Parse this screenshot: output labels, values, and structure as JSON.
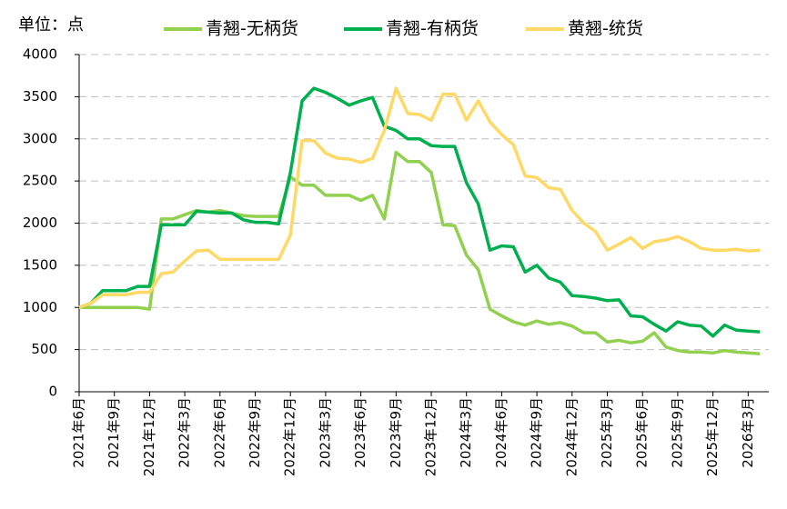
{
  "chart_data": {
    "type": "line",
    "y_label": "单位：点",
    "categories": [
      "2021年6月",
      null,
      null,
      "2021年9月",
      null,
      null,
      "2021年12月",
      null,
      null,
      "2022年3月",
      null,
      null,
      "2022年6月",
      null,
      null,
      "2022年9月",
      null,
      null,
      "2022年12月",
      null,
      null,
      "2023年3月",
      null,
      null,
      "2023年6月",
      null,
      null,
      "2023年9月",
      null,
      null,
      "2023年12月",
      null,
      null,
      "2024年3月",
      null,
      null,
      "2024年6月",
      null,
      null,
      "2024年9月",
      null,
      null,
      "2024年12月",
      null,
      null,
      "2025年3月",
      null,
      null,
      "2025年6月",
      null,
      null,
      "2025年9月",
      null,
      null,
      "2025年12月",
      null,
      null,
      "2026年3月",
      null
    ],
    "series": [
      {
        "name": "青翘-无柄货",
        "color": "#92d050",
        "values": [
          1000,
          1000,
          1000,
          1000,
          1000,
          1000,
          980,
          2050,
          2050,
          2100,
          2150,
          2130,
          2150,
          2120,
          2090,
          2080,
          2080,
          2080,
          2550,
          2450,
          2450,
          2330,
          2330,
          2330,
          2270,
          2330,
          2050,
          2840,
          2730,
          2730,
          2600,
          1980,
          1970,
          1620,
          1450,
          980,
          900,
          830,
          790,
          840,
          800,
          820,
          780,
          700,
          700,
          590,
          610,
          580,
          600,
          700,
          530,
          490,
          470,
          470,
          460,
          490,
          470,
          460,
          450
        ]
      },
      {
        "name": "青翘-有柄货",
        "color": "#00b050",
        "values": [
          1000,
          1050,
          1200,
          1200,
          1200,
          1250,
          1250,
          1980,
          1980,
          1980,
          2140,
          2130,
          2120,
          2120,
          2040,
          2010,
          2010,
          1990,
          2600,
          3450,
          3600,
          3550,
          3480,
          3400,
          3450,
          3490,
          3150,
          3100,
          3000,
          3000,
          2920,
          2910,
          2910,
          2480,
          2230,
          1680,
          1730,
          1720,
          1420,
          1500,
          1350,
          1300,
          1140,
          1130,
          1110,
          1080,
          1090,
          900,
          890,
          800,
          720,
          830,
          790,
          780,
          660,
          790,
          730,
          720,
          710
        ]
      },
      {
        "name": "黄翘-统货",
        "color": "#ffd966",
        "values": [
          1000,
          1050,
          1150,
          1150,
          1150,
          1180,
          1180,
          1400,
          1420,
          1550,
          1670,
          1680,
          1570,
          1570,
          1570,
          1570,
          1570,
          1570,
          1860,
          2980,
          2980,
          2830,
          2770,
          2760,
          2720,
          2770,
          3100,
          3600,
          3300,
          3290,
          3220,
          3530,
          3530,
          3220,
          3450,
          3200,
          3050,
          2930,
          2560,
          2540,
          2420,
          2400,
          2150,
          2000,
          1900,
          1680,
          1750,
          1830,
          1700,
          1780,
          1800,
          1840,
          1780,
          1700,
          1680,
          1680,
          1690,
          1670,
          1680
        ]
      }
    ],
    "ylim": [
      0,
      4000
    ],
    "yticks": [
      0,
      500,
      1000,
      1500,
      2000,
      2500,
      3000,
      3500,
      4000
    ],
    "grid": true
  }
}
